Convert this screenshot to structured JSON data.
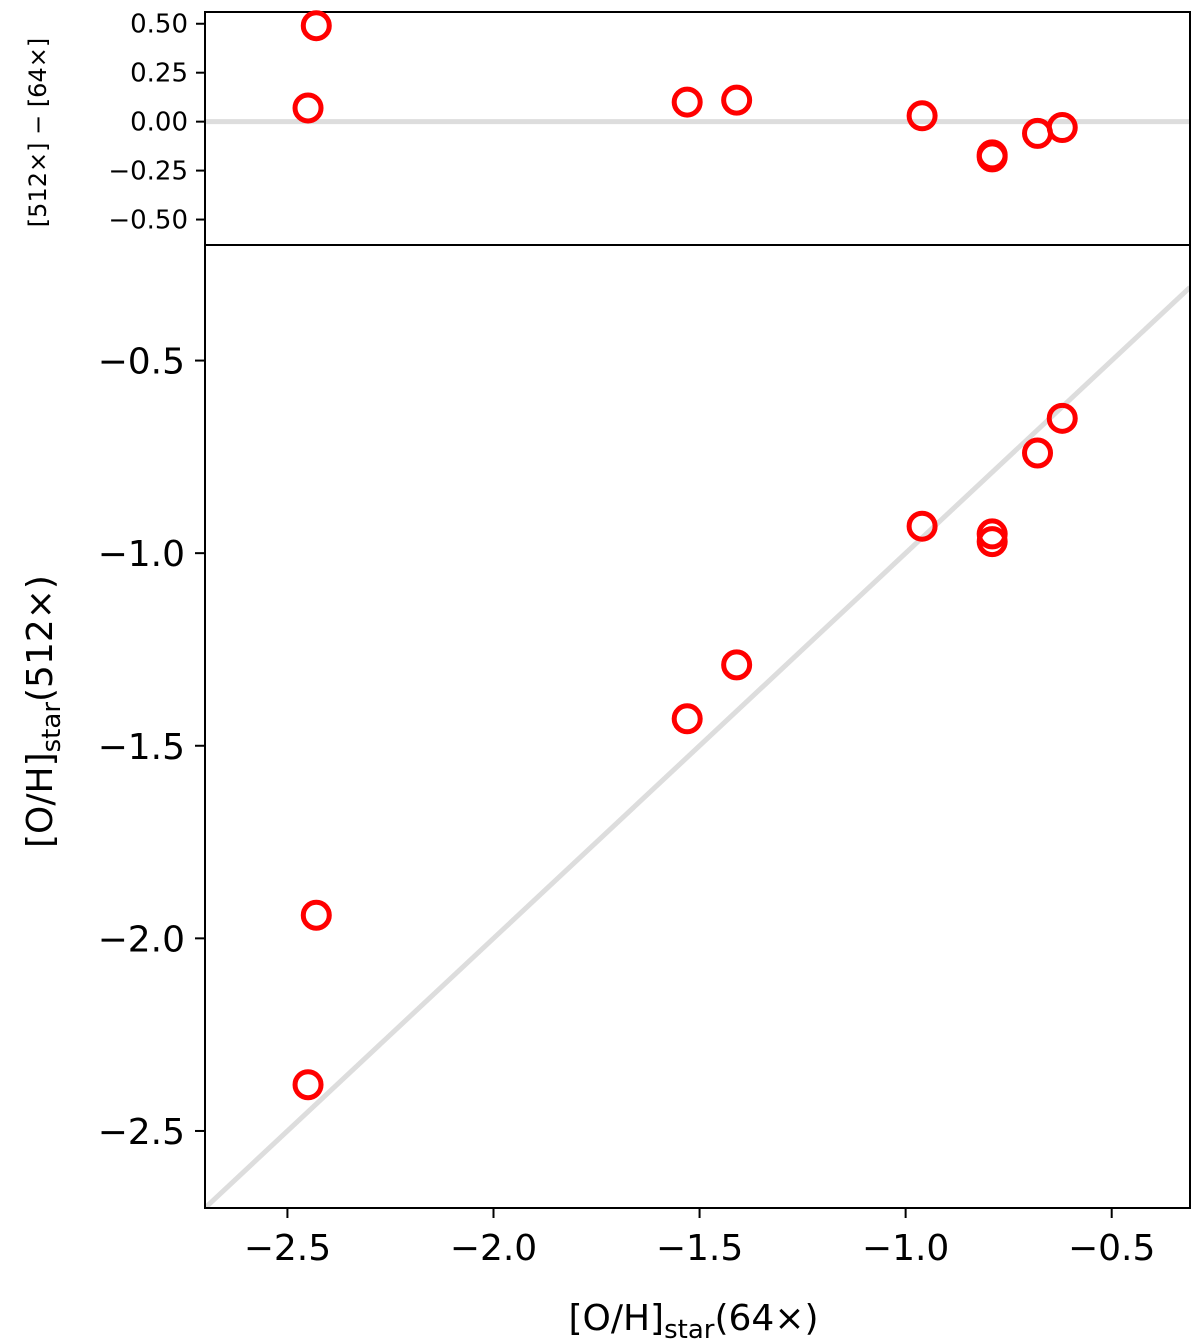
{
  "chart_data": [
    {
      "type": "scatter",
      "panel": "top",
      "ylabel": "[512×] − [64×]",
      "xlim": [
        -2.7,
        -0.31
      ],
      "ylim": [
        -0.63,
        0.56
      ],
      "yticks": [
        0.5,
        0.25,
        0.0,
        -0.25,
        -0.5
      ],
      "ytick_labels": [
        "0.50",
        "0.25",
        "0.00",
        "−0.25",
        "−0.50"
      ],
      "reference_line": {
        "y": 0.0,
        "color": "#dddddd"
      },
      "marker": {
        "shape": "open-circle",
        "color": "#ff0000"
      },
      "points": [
        {
          "x": -2.45,
          "y": 0.07
        },
        {
          "x": -2.43,
          "y": 0.49
        },
        {
          "x": -1.53,
          "y": 0.1
        },
        {
          "x": -1.41,
          "y": 0.11
        },
        {
          "x": -0.96,
          "y": 0.03
        },
        {
          "x": -0.79,
          "y": -0.17
        },
        {
          "x": -0.79,
          "y": -0.18
        },
        {
          "x": -0.68,
          "y": -0.06
        },
        {
          "x": -0.62,
          "y": -0.03
        }
      ]
    },
    {
      "type": "scatter",
      "panel": "bottom",
      "xlabel_main": "[O/H]",
      "xlabel_sub": "star",
      "xlabel_tail": "(64×)",
      "ylabel_main": "[O/H]",
      "ylabel_sub": "star",
      "ylabel_tail": "(512×)",
      "xlim": [
        -2.7,
        -0.31
      ],
      "ylim": [
        -2.7,
        -0.2
      ],
      "xticks": [
        -2.5,
        -2.0,
        -1.5,
        -1.0,
        -0.5
      ],
      "xtick_labels": [
        "−2.5",
        "−2.0",
        "−1.5",
        "−1.0",
        "−0.5"
      ],
      "yticks": [
        -0.5,
        -1.0,
        -1.5,
        -2.0,
        -2.5
      ],
      "ytick_labels": [
        "−0.5",
        "−1.0",
        "−1.5",
        "−2.0",
        "−2.5"
      ],
      "reference_line": {
        "type": "one-to-one",
        "color": "#dddddd"
      },
      "marker": {
        "shape": "open-circle",
        "color": "#ff0000"
      },
      "points": [
        {
          "x": -2.45,
          "y": -2.38
        },
        {
          "x": -2.43,
          "y": -1.94
        },
        {
          "x": -1.53,
          "y": -1.43
        },
        {
          "x": -1.41,
          "y": -1.29
        },
        {
          "x": -0.96,
          "y": -0.93
        },
        {
          "x": -0.79,
          "y": -0.95
        },
        {
          "x": -0.79,
          "y": -0.97
        },
        {
          "x": -0.68,
          "y": -0.74
        },
        {
          "x": -0.62,
          "y": -0.65
        }
      ]
    }
  ]
}
